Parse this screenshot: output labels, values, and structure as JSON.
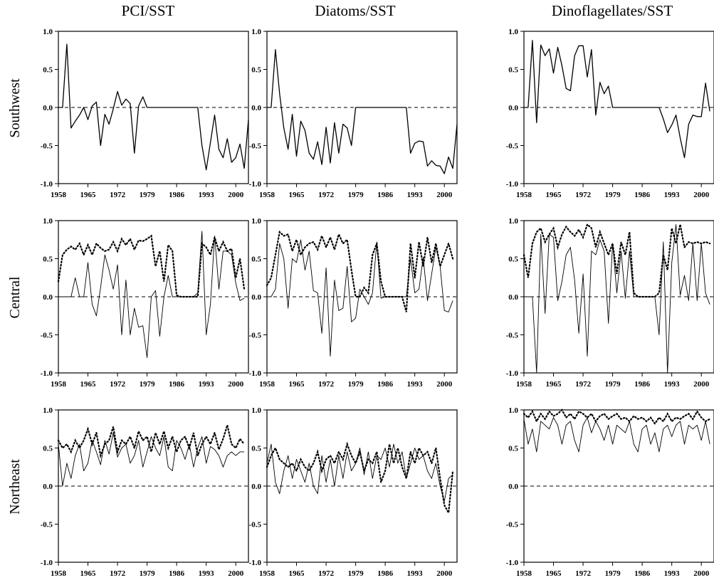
{
  "figure": {
    "column_titles": [
      "PCI/SST",
      "Diatoms/SST",
      "Dinoflagellates/SST"
    ],
    "row_labels": [
      "Southwest",
      "Central",
      "Northeast"
    ],
    "x_tick_labels": [
      "1958",
      "1965",
      "1972",
      "1979",
      "1986",
      "1993",
      "2000"
    ],
    "y_tick_labels": [
      "1.0",
      "0.5",
      "0.0",
      "-0.5",
      "-1.0"
    ]
  },
  "chart_data": [
    {
      "type": "line",
      "panel": "Southwest PCI/SST",
      "x_start": 1958,
      "xlim": [
        1958,
        2003
      ],
      "ylim": [
        -1,
        1
      ],
      "xticks": [
        1958,
        1965,
        1972,
        1979,
        1986,
        1993,
        2000
      ],
      "yticks": [
        -1,
        -0.5,
        0,
        0.5,
        1
      ],
      "zero_line": "dashed",
      "series": [
        {
          "style": "solid",
          "values": [
            0,
            0,
            0.83,
            -0.27,
            -0.18,
            -0.1,
            0,
            -0.16,
            0.02,
            0.07,
            -0.5,
            -0.09,
            -0.22,
            -0.02,
            0.21,
            0.03,
            0.11,
            0.05,
            -0.6,
            0.02,
            0.14,
            0,
            0,
            0,
            0,
            0,
            0,
            0,
            0,
            0,
            0,
            0,
            0,
            0,
            -0.5,
            -0.82,
            -0.46,
            -0.1,
            -0.55,
            -0.66,
            -0.41,
            -0.72,
            -0.66,
            -0.48,
            -0.8,
            -0.16
          ]
        }
      ]
    },
    {
      "type": "line",
      "panel": "Southwest Diatoms/SST",
      "x_start": 1958,
      "xlim": [
        1958,
        2003
      ],
      "ylim": [
        -1,
        1
      ],
      "xticks": [
        1958,
        1965,
        1972,
        1979,
        1986,
        1993,
        2000
      ],
      "yticks": [
        -1,
        -0.5,
        0,
        0.5,
        1
      ],
      "zero_line": "dashed",
      "series": [
        {
          "style": "solid",
          "values": [
            0,
            0,
            0.76,
            0.18,
            -0.27,
            -0.55,
            -0.09,
            -0.64,
            -0.18,
            -0.3,
            -0.6,
            -0.68,
            -0.45,
            -0.75,
            -0.26,
            -0.73,
            -0.2,
            -0.6,
            -0.22,
            -0.27,
            -0.5,
            0,
            0,
            0,
            0,
            0,
            0,
            0,
            0,
            0,
            0,
            0,
            0,
            0,
            -0.6,
            -0.47,
            -0.44,
            -0.45,
            -0.77,
            -0.7,
            -0.76,
            -0.77,
            -0.87,
            -0.65,
            -0.8,
            -0.22
          ]
        }
      ]
    },
    {
      "type": "line",
      "panel": "Southwest Dinoflagellates/SST",
      "x_start": 1958,
      "xlim": [
        1958,
        2003
      ],
      "ylim": [
        -1,
        1
      ],
      "xticks": [
        1958,
        1965,
        1972,
        1979,
        1986,
        1993,
        2000
      ],
      "yticks": [
        -1,
        -0.5,
        0,
        0.5,
        1
      ],
      "zero_line": "dashed",
      "series": [
        {
          "style": "solid",
          "values": [
            0,
            0,
            0.88,
            -0.2,
            0.82,
            0.68,
            0.77,
            0.45,
            0.79,
            0.55,
            0.25,
            0.22,
            0.68,
            0.81,
            0.81,
            0.4,
            0.76,
            -0.1,
            0.33,
            0.18,
            0.28,
            0,
            0,
            0,
            0,
            0,
            0,
            0,
            0,
            0,
            0,
            0,
            0,
            -0.15,
            -0.33,
            -0.23,
            -0.1,
            -0.4,
            -0.66,
            -0.22,
            -0.1,
            -0.12,
            -0.12,
            0.32,
            -0.05
          ]
        }
      ]
    },
    {
      "type": "line",
      "panel": "Central PCI/SST",
      "x_start": 1958,
      "xlim": [
        1958,
        2003
      ],
      "ylim": [
        -1,
        1
      ],
      "xticks": [
        1958,
        1965,
        1972,
        1979,
        1986,
        1993,
        2000
      ],
      "yticks": [
        -1,
        -0.5,
        0,
        0.5,
        1
      ],
      "zero_line": "dashed",
      "series": [
        {
          "style": "solid",
          "values": [
            0,
            0,
            0,
            0,
            0.25,
            0,
            0,
            0.45,
            -0.1,
            -0.25,
            0.12,
            0.55,
            0.35,
            0.1,
            0.42,
            -0.5,
            0.22,
            -0.5,
            -0.15,
            -0.4,
            -0.38,
            -0.8,
            0,
            0.08,
            -0.52,
            0,
            0.28,
            0,
            0,
            0,
            0,
            0,
            0,
            0.05,
            0.86,
            -0.5,
            -0.1,
            0.8,
            0.1,
            0.6,
            0.6,
            0.55,
            0.18,
            -0.05,
            -0.02
          ]
        },
        {
          "style": "dotted",
          "values": [
            0.2,
            0.55,
            0.62,
            0.66,
            0.62,
            0.7,
            0.55,
            0.68,
            0.55,
            0.7,
            0.64,
            0.6,
            0.62,
            0.72,
            0.6,
            0.76,
            0.68,
            0.76,
            0.62,
            0.74,
            0.73,
            0.76,
            0.8,
            0.4,
            0.6,
            0.2,
            0.68,
            0.6,
            0.02,
            0,
            0,
            0,
            0,
            0,
            0.7,
            0.65,
            0.55,
            0.78,
            0.6,
            0.72,
            0.6,
            0.63,
            0.25,
            0.5,
            0.1
          ]
        }
      ]
    },
    {
      "type": "line",
      "panel": "Central Diatoms/SST",
      "x_start": 1958,
      "xlim": [
        1958,
        2003
      ],
      "ylim": [
        -1,
        1
      ],
      "xticks": [
        1958,
        1965,
        1972,
        1979,
        1986,
        1993,
        2000
      ],
      "yticks": [
        -1,
        -0.5,
        0,
        0.5,
        1
      ],
      "zero_line": "dashed",
      "series": [
        {
          "style": "solid",
          "values": [
            0,
            0,
            0.1,
            0.7,
            0.5,
            -0.15,
            0.5,
            0.45,
            0.75,
            0.35,
            0.6,
            0.08,
            0.05,
            -0.48,
            0.38,
            -0.78,
            0.22,
            -0.18,
            -0.15,
            0.4,
            -0.33,
            -0.28,
            0.1,
            0,
            -0.1,
            0.05,
            0.72,
            -0.02,
            0,
            0,
            0,
            0,
            0,
            0,
            0.5,
            0.05,
            0.1,
            0.52,
            -0.05,
            0.3,
            0.65,
            0.4,
            -0.18,
            -0.2,
            -0.05
          ]
        },
        {
          "style": "dotted",
          "values": [
            0.15,
            0.25,
            0.55,
            0.85,
            0.8,
            0.82,
            0.6,
            0.75,
            0.55,
            0.65,
            0.7,
            0.72,
            0.62,
            0.8,
            0.65,
            0.78,
            0.62,
            0.82,
            0.7,
            0.75,
            0.35,
            0,
            0,
            0.12,
            0.05,
            0.55,
            0.7,
            0.2,
            0,
            0,
            0,
            0,
            0,
            -0.2,
            0.7,
            0.25,
            0.72,
            0.4,
            0.78,
            0.45,
            0.7,
            0.4,
            0.55,
            0.7,
            0.5
          ]
        }
      ]
    },
    {
      "type": "line",
      "panel": "Central Dinoflagellates/SST",
      "x_start": 1958,
      "xlim": [
        1958,
        2003
      ],
      "ylim": [
        -1,
        1
      ],
      "xticks": [
        1958,
        1965,
        1972,
        1979,
        1986,
        1993,
        2000
      ],
      "yticks": [
        -1,
        -0.5,
        0,
        0.5,
        1
      ],
      "zero_line": "dashed",
      "series": [
        {
          "style": "solid",
          "values": [
            0,
            0,
            0,
            -1.0,
            0.82,
            -0.22,
            0.82,
            0.78,
            -0.05,
            0.2,
            0.55,
            0.65,
            0.22,
            -0.48,
            0.3,
            -0.78,
            0.6,
            0.55,
            0.75,
            0.6,
            -0.35,
            0.7,
            0.05,
            0.6,
            -0.02,
            0.6,
            0,
            0,
            0,
            0,
            0,
            0,
            -0.5,
            0.72,
            -1.0,
            0.45,
            0.95,
            0.02,
            0.28,
            -0.05,
            0.7,
            -0.05,
            0.7,
            0.05,
            -0.1
          ]
        },
        {
          "style": "dotted",
          "values": [
            0.55,
            0.25,
            0.7,
            0.85,
            0.9,
            0.72,
            0.82,
            0.9,
            0.65,
            0.82,
            0.92,
            0.85,
            0.8,
            0.88,
            0.78,
            0.95,
            0.9,
            0.65,
            0.85,
            0.7,
            0.55,
            0.7,
            0.3,
            0.72,
            0.55,
            0.85,
            0.05,
            0,
            0,
            0,
            0,
            0,
            0.05,
            0.55,
            0.35,
            0.9,
            0.7,
            0.95,
            0.65,
            0.72,
            0.7,
            0.72,
            0.7,
            0.72,
            0.7
          ]
        }
      ]
    },
    {
      "type": "line",
      "panel": "Northeast PCI/SST",
      "x_start": 1958,
      "xlim": [
        1958,
        2003
      ],
      "ylim": [
        -1,
        1
      ],
      "xticks": [
        1958,
        1965,
        1972,
        1979,
        1986,
        1993,
        2000
      ],
      "yticks": [
        -1,
        -0.5,
        0,
        0.5,
        1
      ],
      "zero_line": "dashed",
      "series": [
        {
          "style": "solid",
          "values": [
            0.55,
            0,
            0.3,
            0.1,
            0.4,
            0.55,
            0.2,
            0.3,
            0.6,
            0.45,
            0.28,
            0.6,
            0.42,
            0.7,
            0.38,
            0.5,
            0.55,
            0.3,
            0.4,
            0.6,
            0.25,
            0.45,
            0.65,
            0.5,
            0.4,
            0.65,
            0.25,
            0.2,
            0.6,
            0.5,
            0.35,
            0.55,
            0.25,
            0.5,
            0.65,
            0.3,
            0.52,
            0.48,
            0.4,
            0.25,
            0.4,
            0.45,
            0.4,
            0.45,
            0.45
          ]
        },
        {
          "style": "dotted",
          "values": [
            0.6,
            0.5,
            0.55,
            0.45,
            0.6,
            0.5,
            0.6,
            0.75,
            0.55,
            0.7,
            0.4,
            0.55,
            0.6,
            0.78,
            0.45,
            0.6,
            0.55,
            0.65,
            0.5,
            0.72,
            0.6,
            0.65,
            0.45,
            0.7,
            0.55,
            0.72,
            0.5,
            0.65,
            0.45,
            0.6,
            0.65,
            0.5,
            0.7,
            0.4,
            0.55,
            0.65,
            0.55,
            0.7,
            0.48,
            0.62,
            0.8,
            0.55,
            0.5,
            0.62,
            0.55
          ]
        }
      ]
    },
    {
      "type": "line",
      "panel": "Northeast Diatoms/SST",
      "x_start": 1958,
      "xlim": [
        1958,
        2003
      ],
      "ylim": [
        -1,
        1
      ],
      "xticks": [
        1958,
        1965,
        1972,
        1979,
        1986,
        1993,
        2000
      ],
      "yticks": [
        -1,
        -0.5,
        0,
        0.5,
        1
      ],
      "zero_line": "dashed",
      "series": [
        {
          "style": "solid",
          "values": [
            0.3,
            0.55,
            0.05,
            -0.1,
            0.2,
            0.4,
            0.1,
            0.35,
            0.2,
            0.05,
            0.3,
            0.0,
            -0.1,
            0.4,
            0.05,
            0.35,
            0.0,
            0.4,
            0.1,
            0.45,
            0.2,
            0.3,
            0.5,
            0.15,
            0.45,
            0.1,
            0.4,
            0.35,
            0.5,
            0.25,
            0.55,
            0.3,
            0.45,
            0.1,
            0.3,
            0.5,
            0.35,
            0.4,
            0.2,
            0.1,
            0.3,
            0.0,
            -0.2,
            0.1,
            0.15
          ]
        },
        {
          "style": "dotted",
          "values": [
            0.25,
            0.4,
            0.5,
            0.35,
            0.3,
            0.25,
            0.3,
            0.2,
            0.35,
            0.25,
            0.2,
            0.3,
            0.45,
            0.2,
            0.35,
            0.4,
            0.3,
            0.45,
            0.35,
            0.55,
            0.4,
            0.3,
            0.45,
            0.2,
            0.35,
            0.3,
            0.45,
            0.05,
            0.2,
            0.55,
            0.3,
            0.5,
            0.25,
            0.1,
            0.45,
            0.3,
            0.5,
            0.4,
            0.45,
            0.3,
            0.5,
            0.1,
            -0.25,
            -0.35,
            0.2
          ]
        }
      ]
    },
    {
      "type": "line",
      "panel": "Northeast Dinoflagellates/SST",
      "x_start": 1958,
      "xlim": [
        1958,
        2003
      ],
      "ylim": [
        -1,
        1
      ],
      "xticks": [
        1958,
        1965,
        1972,
        1979,
        1986,
        1993,
        2000
      ],
      "yticks": [
        -1,
        -0.5,
        0,
        0.5,
        1
      ],
      "zero_line": "dashed",
      "series": [
        {
          "style": "solid",
          "values": [
            0.88,
            0.55,
            0.75,
            0.45,
            0.85,
            0.8,
            0.75,
            0.9,
            0.8,
            0.55,
            0.8,
            0.85,
            0.6,
            0.45,
            0.8,
            0.9,
            0.7,
            0.85,
            0.75,
            0.6,
            0.8,
            0.55,
            0.8,
            0.75,
            0.7,
            0.85,
            0.55,
            0.45,
            0.75,
            0.8,
            0.55,
            0.7,
            0.45,
            0.75,
            0.8,
            0.65,
            0.8,
            0.85,
            0.55,
            0.8,
            0.75,
            0.8,
            0.6,
            0.85,
            0.55
          ]
        },
        {
          "style": "dotted",
          "values": [
            0.95,
            0.9,
            0.98,
            0.85,
            0.95,
            0.88,
            0.98,
            0.92,
            0.95,
            1.0,
            0.9,
            0.95,
            0.88,
            0.98,
            0.95,
            0.9,
            0.95,
            0.85,
            0.92,
            0.95,
            0.88,
            0.92,
            0.95,
            0.88,
            0.9,
            0.85,
            0.92,
            0.88,
            0.9,
            0.85,
            0.9,
            0.82,
            0.9,
            0.85,
            0.95,
            0.85,
            0.9,
            0.88,
            0.92,
            0.95,
            0.88,
            0.98,
            0.9,
            0.85,
            0.88
          ]
        }
      ]
    }
  ]
}
